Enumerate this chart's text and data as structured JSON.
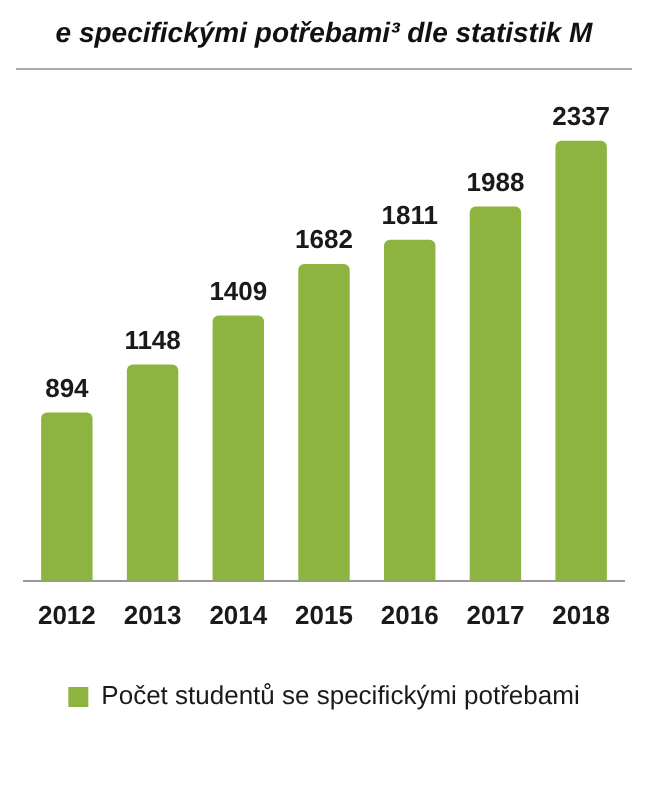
{
  "chart_data": {
    "type": "bar",
    "title": "e specifickými potřebami³ dle statistik M",
    "categories": [
      "2012",
      "2013",
      "2014",
      "2015",
      "2016",
      "2017",
      "2018"
    ],
    "series": [
      {
        "name": "Počet studentů se specifickými potřebami",
        "color": "#8db440",
        "values": [
          894,
          1148,
          1409,
          1682,
          1811,
          1988,
          2337
        ]
      }
    ],
    "data_labels": true,
    "grid": false,
    "legend": "bottom"
  }
}
